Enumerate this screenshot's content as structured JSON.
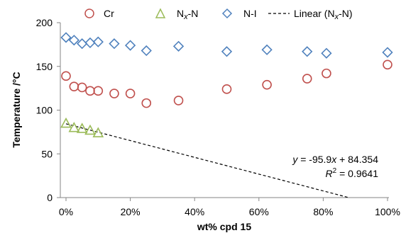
{
  "chart_data": {
    "type": "scatter",
    "xlabel": "wt% cpd 15",
    "ylabel": "Temperature /°C",
    "xlim": [
      0,
      100
    ],
    "ylim": [
      0,
      200
    ],
    "x_ticks": [
      0,
      20,
      40,
      60,
      80,
      100
    ],
    "x_tick_labels": [
      "0%",
      "20%",
      "40%",
      "60%",
      "80%",
      "100%"
    ],
    "y_ticks": [
      0,
      50,
      100,
      150,
      200
    ],
    "y_tick_labels": [
      "0",
      "50",
      "100",
      "150",
      "200"
    ],
    "grid": false,
    "legend_position": "top",
    "legend": [
      {
        "label": "Cr",
        "marker": "circle",
        "color": "#c0504d"
      },
      {
        "label": "Nx-N",
        "label_main": "N",
        "label_sub": "x",
        "label_rest": "-N",
        "marker": "triangle",
        "color": "#9bbb59"
      },
      {
        "label": "N-I",
        "marker": "diamond",
        "color": "#4f81bd"
      },
      {
        "label": "Linear (Nx-N)",
        "label_main": "Linear (N",
        "label_sub": "x",
        "label_rest": "-N)",
        "marker": "dashed-line",
        "color": "#000000"
      }
    ],
    "series": [
      {
        "name": "Cr",
        "marker": "circle",
        "color": "#c0504d",
        "x": [
          0,
          2.5,
          5,
          7.5,
          10,
          15,
          20,
          25,
          35,
          50,
          62.5,
          75,
          81,
          100
        ],
        "y": [
          139,
          127,
          126,
          122,
          122,
          119,
          119,
          108,
          111,
          124,
          129,
          136,
          142,
          152
        ]
      },
      {
        "name": "Nx-N",
        "marker": "triangle",
        "color": "#9bbb59",
        "x": [
          0,
          2.5,
          5,
          7.5,
          10
        ],
        "y": [
          85,
          80,
          79,
          77,
          74
        ]
      },
      {
        "name": "N-I",
        "marker": "diamond",
        "color": "#4f81bd",
        "x": [
          0,
          2.5,
          5,
          7.5,
          10,
          15,
          20,
          25,
          35,
          50,
          62.5,
          75,
          81,
          100
        ],
        "y": [
          183,
          180,
          176,
          177,
          178,
          176,
          174,
          168,
          173,
          167,
          169,
          167,
          165,
          166
        ]
      }
    ],
    "trendline": {
      "name": "Linear (Nx-N)",
      "slope": -95.9,
      "intercept": 84.354,
      "color": "#000000",
      "style": "dashed"
    },
    "annotations": {
      "equation": {
        "var_y": "y",
        "rest1": " = -95.9",
        "var_x": "x",
        "rest2": " + 84.354"
      },
      "r2": {
        "var": "R",
        "sup": "2",
        "rest": " = 0.9641"
      }
    }
  }
}
